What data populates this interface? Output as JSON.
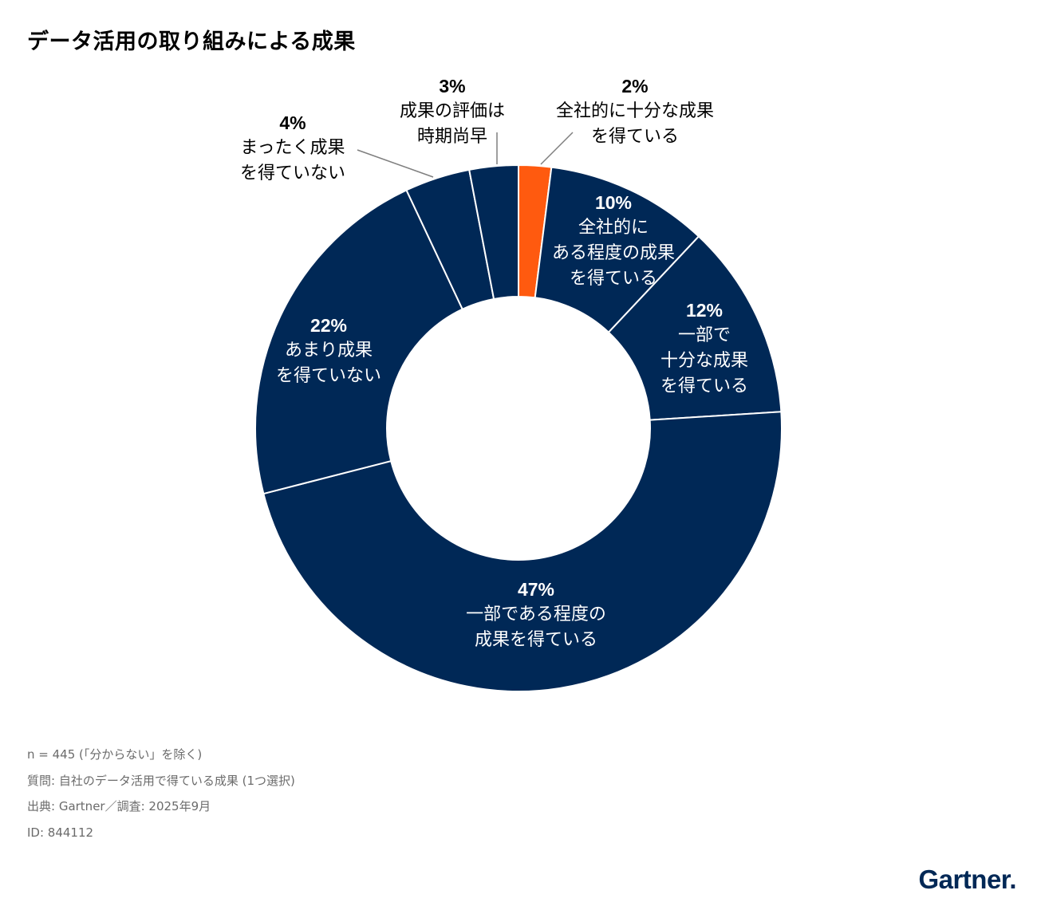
{
  "chart_data": {
    "type": "pie",
    "variant": "donut",
    "title": "データ活用の取り組みによる成果",
    "slices": [
      {
        "label": "全社的に十分な成果\nを得ている",
        "value": 2,
        "pct": "2%",
        "color": "#FF5A0F"
      },
      {
        "label": "全社的に\nある程度の成果\nを得ている",
        "value": 10,
        "pct": "10%",
        "color": "#002856"
      },
      {
        "label": "一部で\n十分な成果\nを得ている",
        "value": 12,
        "pct": "12%",
        "color": "#002856"
      },
      {
        "label": "一部である程度の\n成果を得ている",
        "value": 47,
        "pct": "47%",
        "color": "#002856"
      },
      {
        "label": "あまり成果\nを得ていない",
        "value": 22,
        "pct": "22%",
        "color": "#002856"
      },
      {
        "label": "まったく成果\nを得ていない",
        "value": 4,
        "pct": "4%",
        "color": "#002856"
      },
      {
        "label": "成果の評価は\n時期尚早",
        "value": 3,
        "pct": "3%",
        "color": "#002856"
      }
    ],
    "start": "12 o'clock",
    "direction": "clockwise"
  },
  "notes": [
    "n = 445 (「分からない」を除く)",
    "質問: 自社のデータ活用で得ている成果 (1つ選択)",
    "出典: Gartner／調査: 2025年9月",
    "ID: 844112"
  ],
  "logo": "Gartner."
}
